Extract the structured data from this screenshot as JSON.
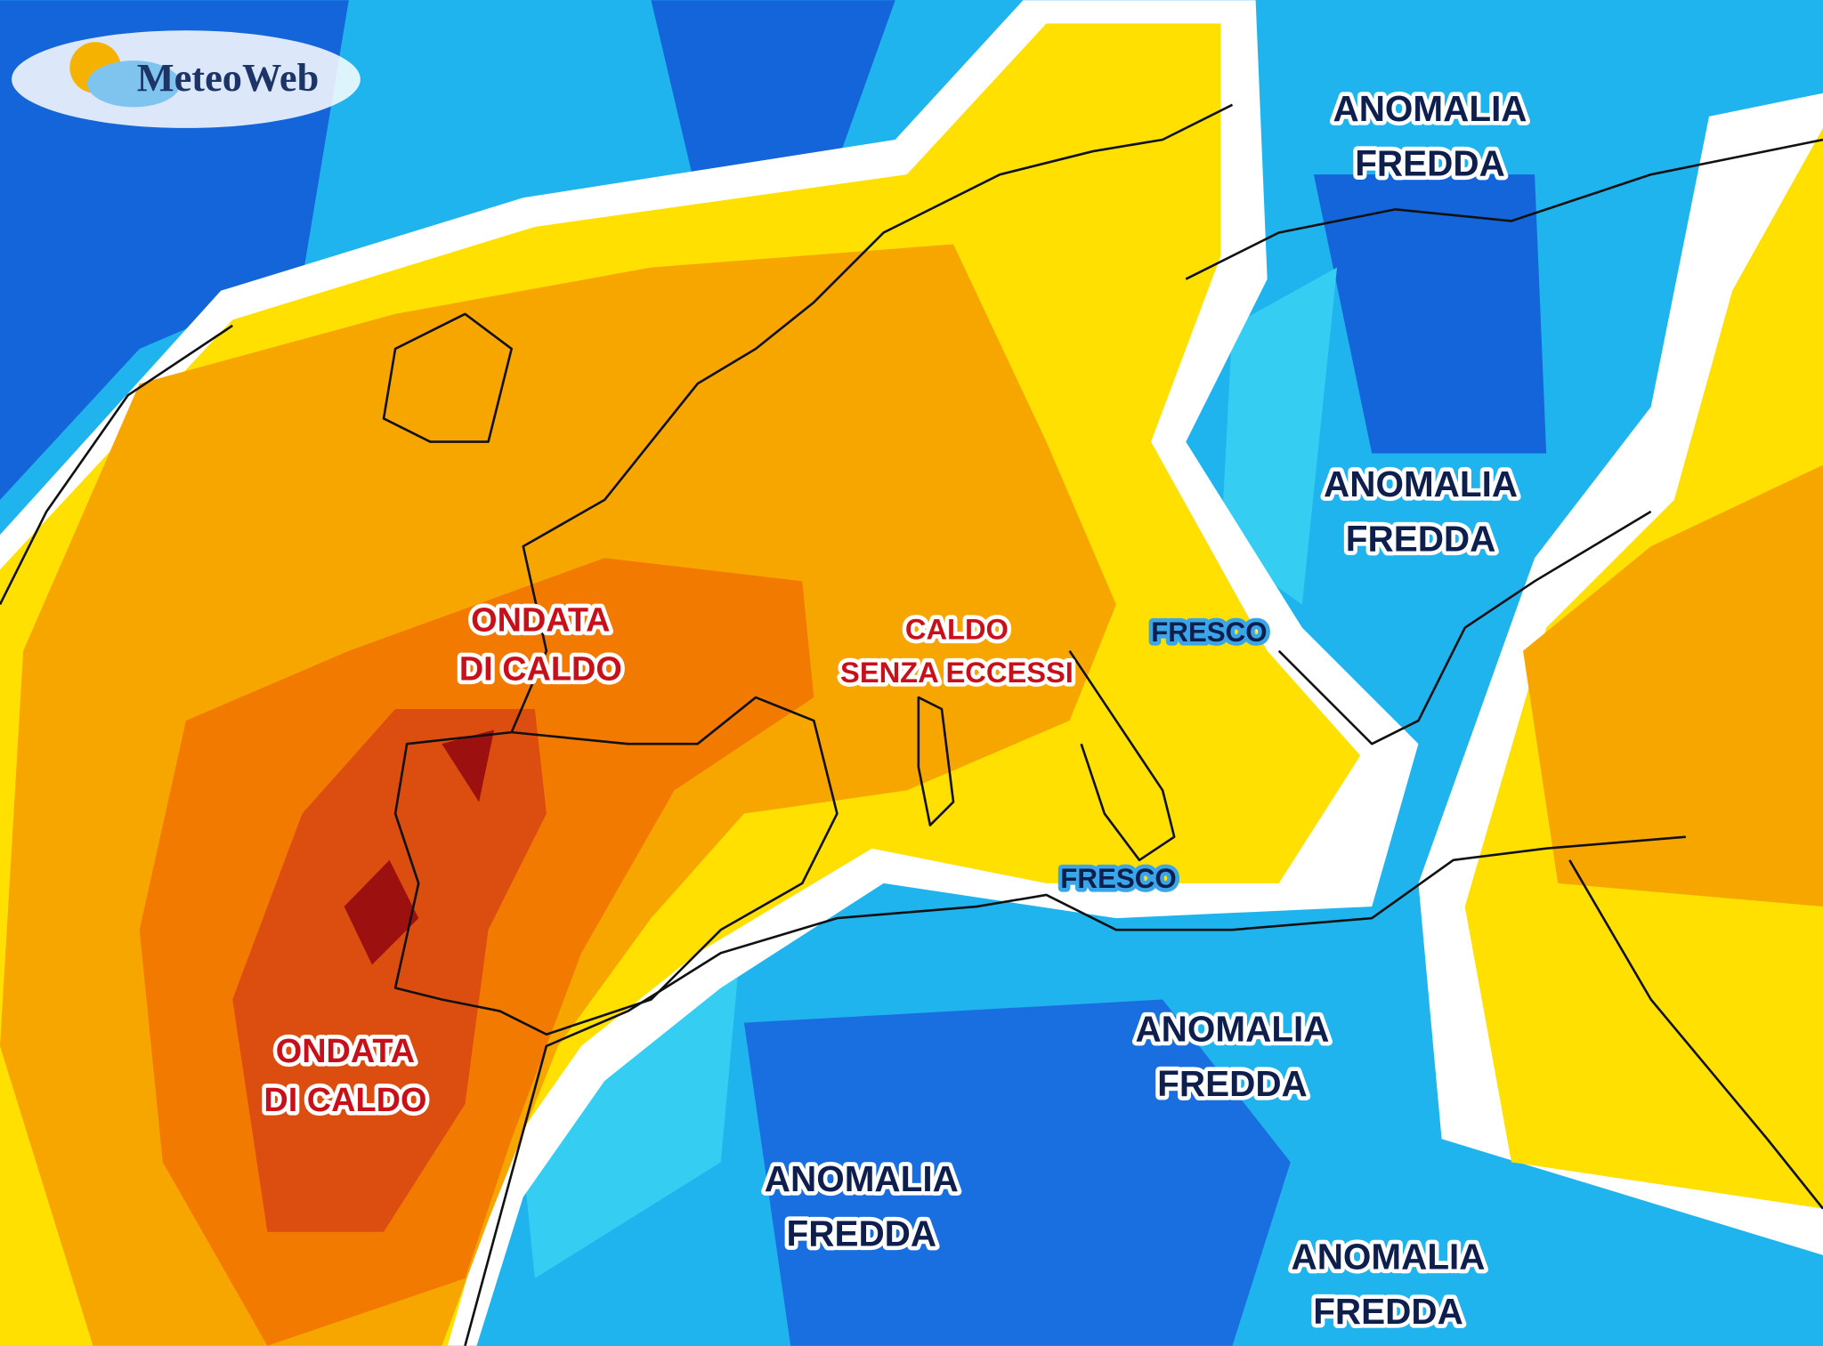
{
  "logo": {
    "text": "MeteoWeb"
  },
  "labels": [
    {
      "lines": [
        "ANOMALIA",
        "FREDDA"
      ]
    },
    {
      "lines": [
        "ANOMALIA",
        "FREDDA"
      ]
    },
    {
      "lines": [
        "FRESCO"
      ]
    },
    {
      "lines": [
        "CALDO",
        "SENZA ECCESSI"
      ]
    },
    {
      "lines": [
        "ONDATA",
        "DI CALDO"
      ]
    },
    {
      "lines": [
        "FRESCO"
      ]
    },
    {
      "lines": [
        "ANOMALIA",
        "FREDDA"
      ]
    },
    {
      "lines": [
        "ONDATA",
        "DI CALDO"
      ]
    },
    {
      "lines": [
        "ANOMALIA",
        "FREDDA"
      ]
    },
    {
      "lines": [
        "ANOMALIA",
        "FREDDA"
      ]
    }
  ]
}
